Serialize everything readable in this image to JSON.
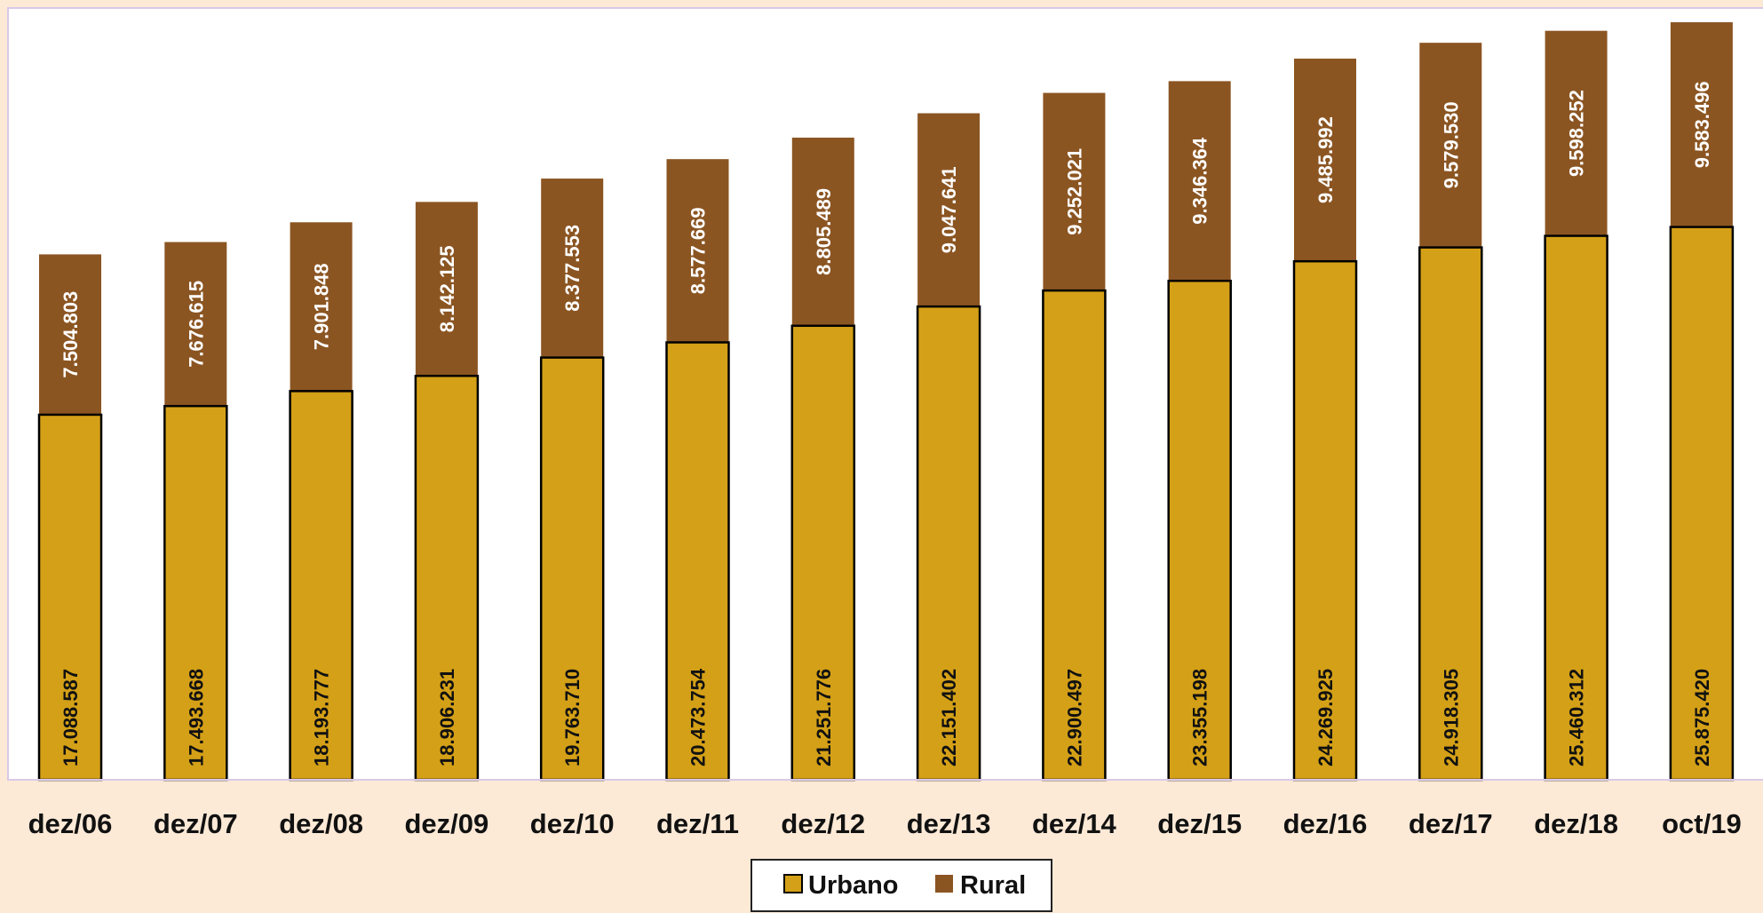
{
  "chart_data": {
    "type": "bar",
    "stacked": true,
    "categories": [
      "dez/06",
      "dez/07",
      "dez/08",
      "dez/09",
      "dez/10",
      "dez/11",
      "dez/12",
      "dez/13",
      "dez/14",
      "dez/15",
      "dez/16",
      "dez/17",
      "dez/18",
      "oct/19"
    ],
    "series": [
      {
        "name": "Urbano",
        "color": "#d4a017",
        "values": [
          17088587,
          17493668,
          18193777,
          18906231,
          19763710,
          20473754,
          21251776,
          22151402,
          22900497,
          23355198,
          24269925,
          24918305,
          25460312,
          25875420
        ],
        "labels": [
          "17.088.587",
          "17.493.668",
          "18.193.777",
          "18.906.231",
          "19.763.710",
          "20.473.754",
          "21.251.776",
          "22.151.402",
          "22.900.497",
          "23.355.198",
          "24.269.925",
          "24.918.305",
          "25.460.312",
          "25.875.420"
        ]
      },
      {
        "name": "Rural",
        "color": "#8b5522",
        "values": [
          7504803,
          7676615,
          7901848,
          8142125,
          8377553,
          8577669,
          8805489,
          9047641,
          9252021,
          9346364,
          9485992,
          9579530,
          9598252,
          9583496
        ],
        "labels": [
          "7.504.803",
          "7.676.615",
          "7.901.848",
          "8.142.125",
          "8.377.553",
          "8.577.669",
          "8.805.489",
          "9.047.641",
          "9.252.021",
          "9.346.364",
          "9.485.992",
          "9.579.530",
          "9.598.252",
          "9.583.496"
        ]
      }
    ],
    "ylim": [
      0,
      36500000
    ],
    "grid": false,
    "legend": "bottom-center",
    "title": "",
    "xlabel": "",
    "ylabel": ""
  }
}
